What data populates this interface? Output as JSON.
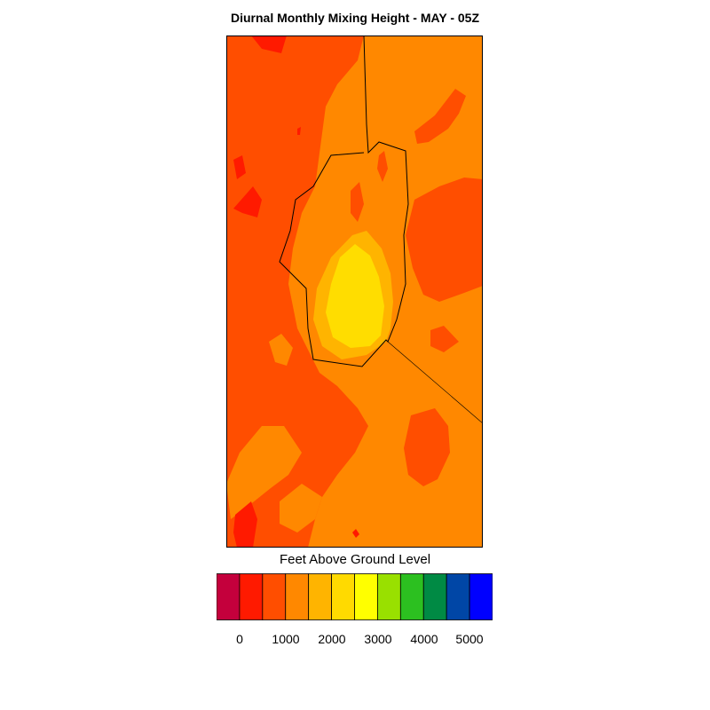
{
  "title": "Diurnal Monthly Mixing Height - MAY - 05Z",
  "colorbar": {
    "label": "Feet Above Ground Level",
    "colors": [
      "#c4003c",
      "#ff1a00",
      "#ff4e00",
      "#ff8800",
      "#ffb400",
      "#ffda00",
      "#ffff00",
      "#99e000",
      "#2cc020",
      "#008a44",
      "#0046a6",
      "#0000ff"
    ],
    "tick_labels": [
      "0",
      "1000",
      "2000",
      "3000",
      "4000",
      "5000"
    ]
  },
  "map_colors": {
    "dark_red": "#ff1a00",
    "red_orange": "#ff4e00",
    "orange": "#ff8800",
    "amber": "#ffb400",
    "yellow": "#ffdd00"
  }
}
